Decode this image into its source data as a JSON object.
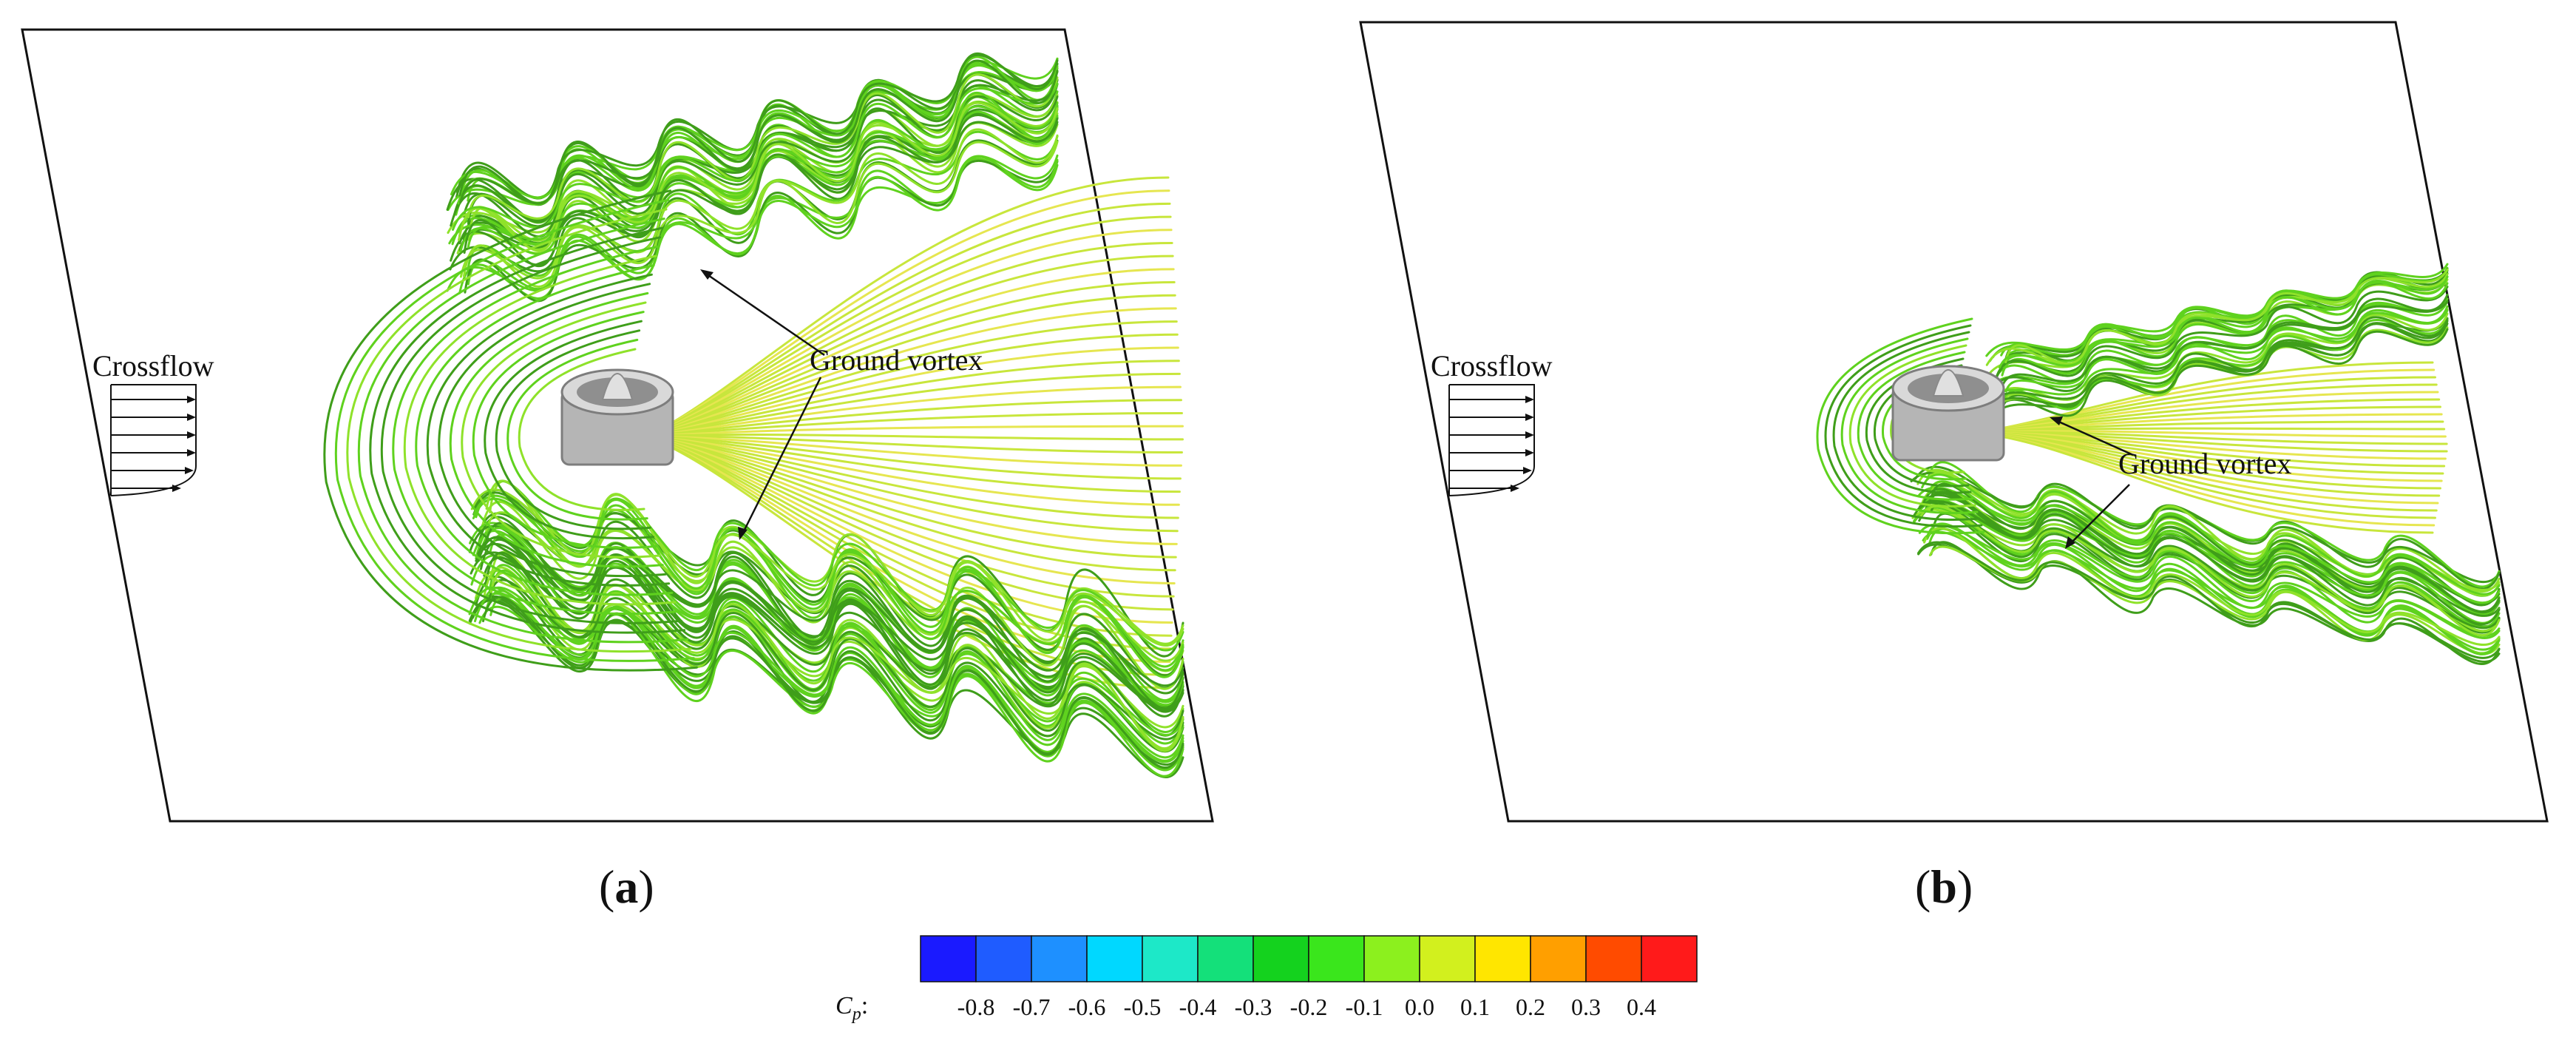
{
  "panels": [
    {
      "id": "a",
      "letter": "a",
      "crossflow_label": "Crossflow",
      "vortex_label": "Ground vortex"
    },
    {
      "id": "b",
      "letter": "b",
      "crossflow_label": "Crossflow",
      "vortex_label": "Ground vortex"
    }
  ],
  "colorbar": {
    "variable_symbol": "C",
    "variable_subscript": "p",
    "suffix": ":",
    "tick_labels": [
      "-0.8",
      "-0.7",
      "-0.6",
      "-0.5",
      "-0.4",
      "-0.3",
      "-0.2",
      "-0.1",
      "0.0",
      "0.1",
      "0.2",
      "0.3",
      "0.4"
    ],
    "colors": [
      "#1a1aff",
      "#1f5cff",
      "#1e90ff",
      "#00d8ff",
      "#1de8c8",
      "#14e07a",
      "#14d21e",
      "#3ae61c",
      "#8cf01e",
      "#d2f01e",
      "#ffe600",
      "#ff9f00",
      "#ff4b00",
      "#ff1a1a"
    ]
  },
  "streamline_colors": {
    "dark_green": "#3f9e1a",
    "green": "#5fd21e",
    "light_green": "#8fe22a",
    "yellow_green": "#c8e63c",
    "yellow": "#e6e650",
    "outline": "#2a4a10"
  },
  "nacelle_color": "#b8b8b8"
}
